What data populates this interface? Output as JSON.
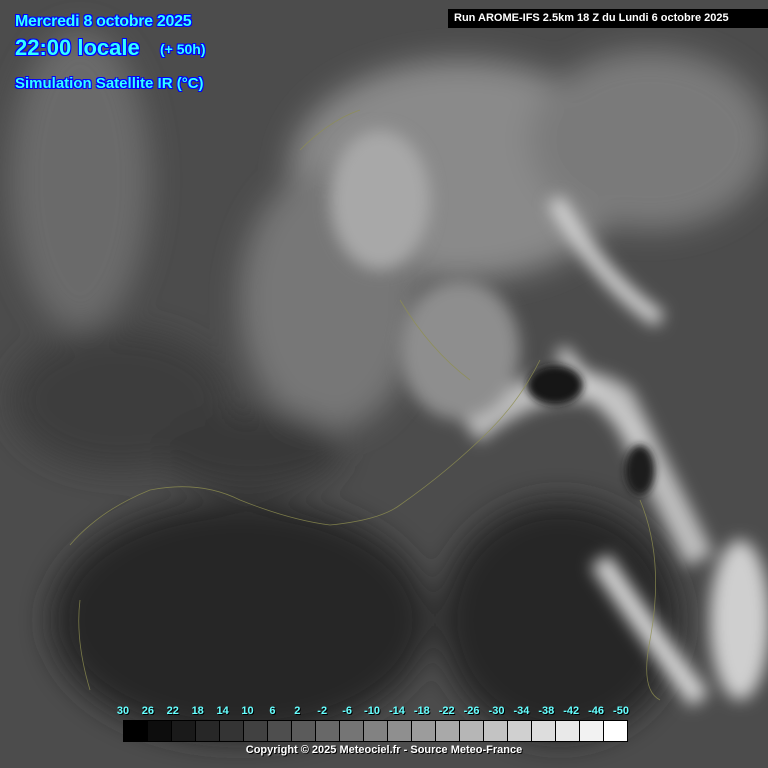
{
  "header": {
    "date": "Mercredi 8 octobre 2025",
    "time": "22:00 locale",
    "lead": "(+ 50h)",
    "product": "Simulation Satellite IR (°C)",
    "run": "Run AROME-IFS 2.5km 18 Z du Lundi 6 octobre 2025"
  },
  "legend": {
    "unit": "°C",
    "labels": [
      "30",
      "26",
      "22",
      "18",
      "14",
      "10",
      "6",
      "2",
      "-2",
      "-6",
      "-10",
      "-14",
      "-18",
      "-22",
      "-26",
      "-30",
      "-34",
      "-38",
      "-42",
      "-46",
      "-50"
    ],
    "colors": [
      "#000000",
      "#0d0d0d",
      "#1a1a1a",
      "#272727",
      "#343434",
      "#414141",
      "#4e4e4e",
      "#5b5b5b",
      "#686868",
      "#757575",
      "#828282",
      "#8f8f8f",
      "#9c9c9c",
      "#a9a9a9",
      "#b6b6b6",
      "#c3c3c3",
      "#d0d0d0",
      "#dddddd",
      "#e9e9e9",
      "#f2f2f2",
      "#ffffff"
    ]
  },
  "footer": {
    "copyright": "Copyright © 2025 Meteociel.fr - Source Meteo-France"
  }
}
